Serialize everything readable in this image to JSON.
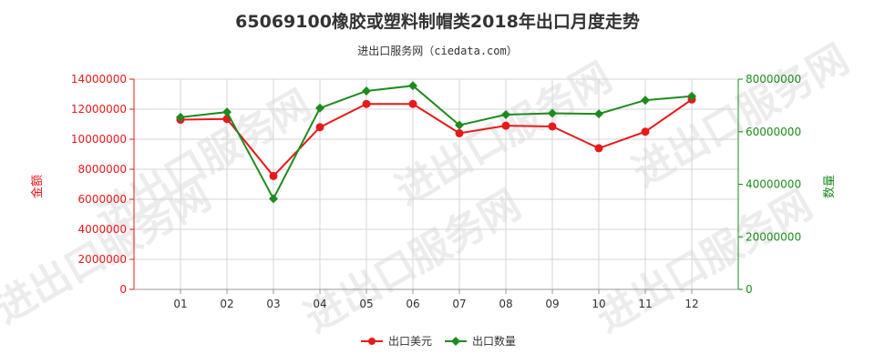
{
  "chart_data": {
    "type": "line",
    "title": "65069100橡胶或塑料制帽类2018年出口月度走势",
    "subtitle": "进出口服务网（ciedata.com）",
    "categories": [
      "01",
      "02",
      "03",
      "04",
      "05",
      "06",
      "07",
      "08",
      "09",
      "10",
      "11",
      "12"
    ],
    "left_axis": {
      "label": "金额",
      "ylim": [
        0,
        14000000
      ],
      "ticks": [
        "0",
        "2000000",
        "4000000",
        "6000000",
        "8000000",
        "10000000",
        "12000000",
        "14000000"
      ],
      "tick_values": [
        0,
        2000000,
        4000000,
        6000000,
        8000000,
        10000000,
        12000000,
        14000000
      ],
      "color": "#e8191b"
    },
    "right_axis": {
      "label": "数量",
      "ylim": [
        0,
        80000000
      ],
      "ticks": [
        "0",
        "20000000",
        "40000000",
        "60000000",
        "80000000"
      ],
      "tick_values": [
        0,
        20000000,
        40000000,
        60000000,
        80000000
      ],
      "color": "#1e8b1e"
    },
    "series": [
      {
        "name": "出口美元",
        "axis": "left",
        "color": "#e8191b",
        "values": [
          11300000,
          11350000,
          7550000,
          10800000,
          12350000,
          12350000,
          10400000,
          10900000,
          10850000,
          9400000,
          10500000,
          12650000
        ]
      },
      {
        "name": "出口数量",
        "axis": "right",
        "color": "#1e8b1e",
        "values": [
          65500000,
          67500000,
          34500000,
          69000000,
          75500000,
          77500000,
          62500000,
          66500000,
          67000000,
          66800000,
          72000000,
          73500000
        ]
      }
    ],
    "grid": true,
    "legend_position": "bottom"
  },
  "watermark": "进出口服务网"
}
